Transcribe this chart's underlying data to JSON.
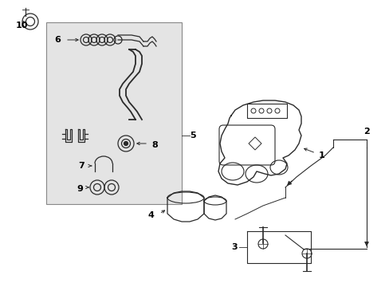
{
  "background_color": "#ffffff",
  "fig_width": 4.89,
  "fig_height": 3.6,
  "dpi": 100,
  "line_color": "#2a2a2a",
  "bg_box_color": "#e0e0e0"
}
